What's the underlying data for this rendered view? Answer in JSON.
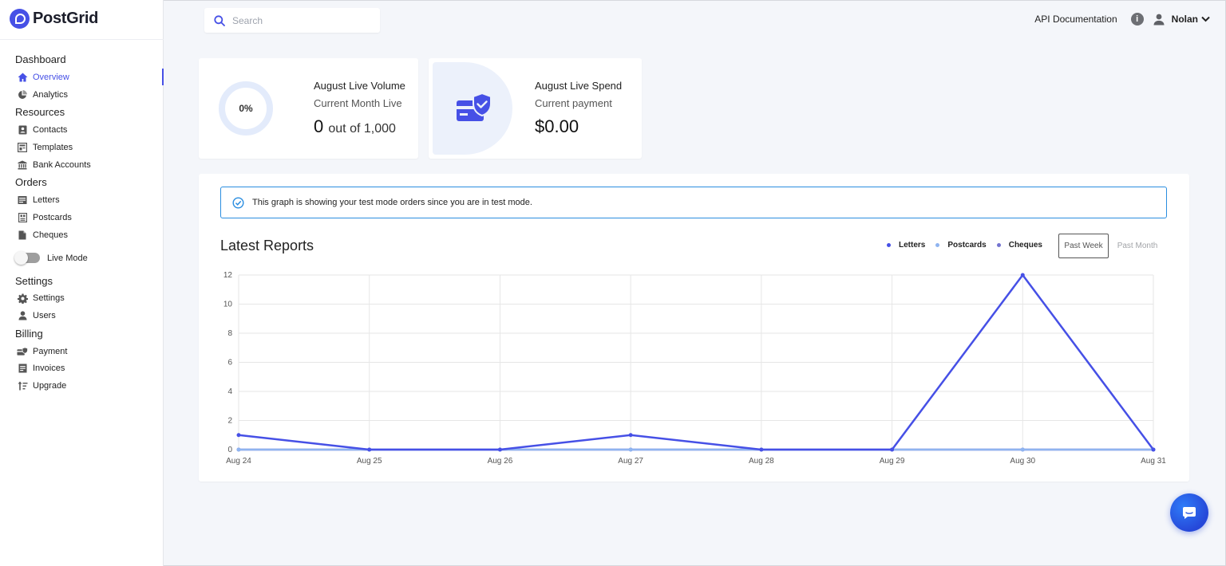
{
  "brand": {
    "name": "PostGrid",
    "accent": "#4650e6"
  },
  "search": {
    "placeholder": "Search"
  },
  "topbar": {
    "api_docs": "API Documentation",
    "user_name": "Nolan"
  },
  "sidebar": {
    "sections": [
      {
        "title": "Dashboard",
        "items": [
          {
            "label": "Overview",
            "icon": "home-icon",
            "active": true
          },
          {
            "label": "Analytics",
            "icon": "pie-chart-icon"
          }
        ]
      },
      {
        "title": "Resources",
        "items": [
          {
            "label": "Contacts",
            "icon": "contact-book-icon"
          },
          {
            "label": "Templates",
            "icon": "template-icon"
          },
          {
            "label": "Bank Accounts",
            "icon": "bank-icon"
          }
        ]
      },
      {
        "title": "Orders",
        "items": [
          {
            "label": "Letters",
            "icon": "letters-icon"
          },
          {
            "label": "Postcards",
            "icon": "postcard-icon"
          },
          {
            "label": "Cheques",
            "icon": "cheque-icon"
          }
        ]
      },
      {
        "title": "Settings",
        "items": [
          {
            "label": "Settings",
            "icon": "gear-icon"
          },
          {
            "label": "Users",
            "icon": "user-icon"
          }
        ]
      },
      {
        "title": "Billing",
        "items": [
          {
            "label": "Payment",
            "icon": "payment-icon"
          },
          {
            "label": "Invoices",
            "icon": "invoice-icon"
          },
          {
            "label": "Upgrade",
            "icon": "upgrade-icon"
          }
        ]
      }
    ],
    "live_mode": {
      "label": "Live Mode",
      "on": false
    }
  },
  "volume_card": {
    "percent": "0%",
    "title": "August Live Volume",
    "subtitle": "Current Month Live",
    "value": "0",
    "value_suffix": "out of 1,000"
  },
  "spend_card": {
    "title": "August Live Spend",
    "subtitle": "Current payment",
    "value": "$0.00"
  },
  "reports": {
    "notice": "This graph is showing your test mode orders since you are in test mode.",
    "title": "Latest Reports",
    "btn_week": "Past Week",
    "btn_month": "Past Month"
  },
  "chart_data": {
    "type": "line",
    "x": [
      "Aug 24",
      "Aug 25",
      "Aug 26",
      "Aug 27",
      "Aug 28",
      "Aug 29",
      "Aug 30",
      "Aug 31"
    ],
    "ylim": [
      0,
      12
    ],
    "yticks": [
      0,
      2,
      4,
      6,
      8,
      10,
      12
    ],
    "grid": true,
    "legend_placement": "top-right",
    "series": [
      {
        "name": "Letters",
        "color": "#4650e6",
        "values": [
          1,
          0,
          0,
          1,
          0,
          0,
          12,
          0
        ]
      },
      {
        "name": "Postcards",
        "color": "#8fb4f0",
        "values": [
          0,
          0,
          0,
          0,
          0,
          0,
          0,
          0
        ]
      },
      {
        "name": "Cheques",
        "color": "#7373d0",
        "values": [
          0,
          0,
          0,
          0,
          0,
          0,
          0,
          0
        ]
      }
    ]
  }
}
